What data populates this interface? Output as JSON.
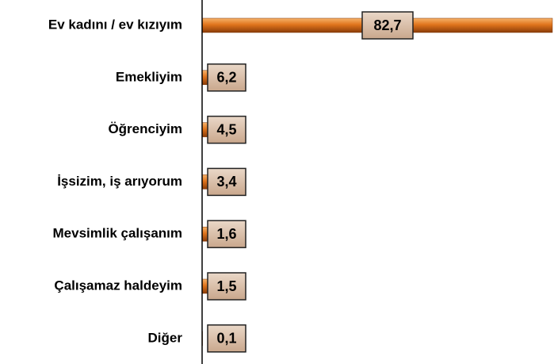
{
  "chart_data": {
    "type": "bar",
    "orientation": "horizontal",
    "categories": [
      "Ev kadını / ev kızıyım",
      "Emekliyim",
      "Öğrenciyim",
      "İşsizim, iş arıyorum",
      "Mevsimlik çalışanım",
      "Çalışamaz haldeyim",
      "Diğer"
    ],
    "values": [
      82.7,
      6.2,
      4.5,
      3.4,
      1.6,
      1.5,
      0.1
    ],
    "value_labels": [
      "82,7",
      "6,2",
      "4,5",
      "3,4",
      "1,6",
      "1,5",
      "0,1"
    ],
    "color": "#e0741c"
  }
}
